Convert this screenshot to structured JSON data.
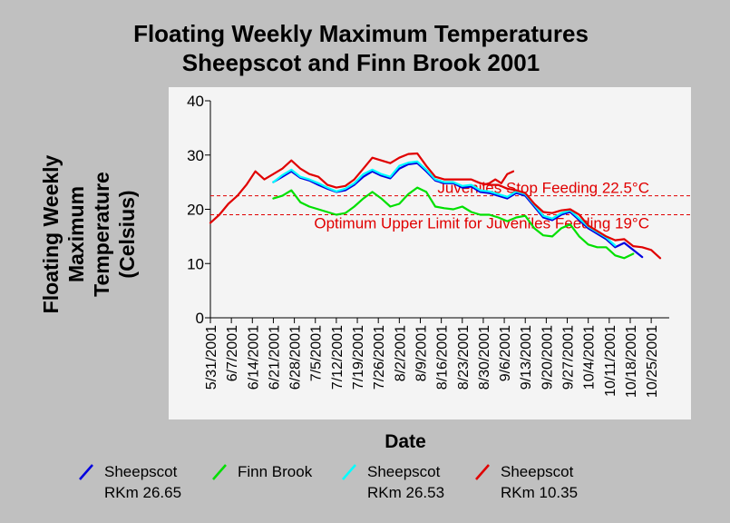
{
  "chart_data": {
    "type": "line",
    "title": [
      "Floating Weekly Maximum Temperatures",
      "Sheepscot and Finn Brook 2001"
    ],
    "xlabel": "Date",
    "ylabel": [
      "Floating Weekly",
      "Maximum",
      "Temperature",
      "(Celsius)"
    ],
    "ylim": [
      0,
      40
    ],
    "yticks": [
      0,
      10,
      20,
      30,
      40
    ],
    "xlim": [
      "2001-05-31",
      "2001-10-31"
    ],
    "xticks": [
      "5/31/2001",
      "6/7/2001",
      "6/14/2001",
      "6/21/2001",
      "6/28/2001",
      "7/5/2001",
      "7/12/2001",
      "7/19/2001",
      "7/26/2001",
      "8/2/2001",
      "8/9/2001",
      "8/16/2001",
      "8/23/2001",
      "8/30/2001",
      "9/6/2001",
      "9/13/2001",
      "9/20/2001",
      "9/27/2001",
      "10/4/2001",
      "10/11/2001",
      "10/18/2001",
      "10/25/2001"
    ],
    "grid": false,
    "legend_position": "bottom",
    "series": [
      {
        "name": "Sheepscot RKm 26.65",
        "legend_line1": "Sheepscot",
        "legend_line2": "RKm 26.65",
        "color": "#0000e0",
        "x": [
          "2001-06-21",
          "2001-06-24",
          "2001-06-27",
          "2001-06-30",
          "2001-07-03",
          "2001-07-06",
          "2001-07-09",
          "2001-07-12",
          "2001-07-15",
          "2001-07-18",
          "2001-07-21",
          "2001-07-24",
          "2001-07-27",
          "2001-07-30",
          "2001-08-02",
          "2001-08-05",
          "2001-08-08",
          "2001-08-11",
          "2001-08-14",
          "2001-08-17",
          "2001-08-20",
          "2001-08-23",
          "2001-08-26",
          "2001-08-29",
          "2001-09-01",
          "2001-09-04",
          "2001-09-07",
          "2001-09-10",
          "2001-09-13",
          "2001-09-16",
          "2001-09-19",
          "2001-09-22",
          "2001-09-25",
          "2001-09-28",
          "2001-10-01",
          "2001-10-04",
          "2001-10-07",
          "2001-10-10",
          "2001-10-13",
          "2001-10-16",
          "2001-10-19",
          "2001-10-22"
        ],
        "y": [
          25.0,
          26.0,
          27.0,
          25.8,
          25.3,
          24.5,
          23.8,
          23.2,
          23.5,
          24.5,
          26.0,
          27.0,
          26.2,
          25.7,
          27.5,
          28.3,
          28.5,
          27.0,
          25.3,
          24.8,
          24.8,
          24.0,
          24.2,
          23.2,
          23.0,
          22.5,
          22.0,
          23.0,
          22.5,
          20.5,
          18.5,
          18.0,
          19.0,
          19.5,
          18.0,
          16.5,
          15.5,
          14.5,
          13.0,
          13.8,
          12.5,
          11.2
        ]
      },
      {
        "name": "Finn Brook",
        "legend_line1": "Finn Brook",
        "legend_line2": "",
        "color": "#00e000",
        "x": [
          "2001-06-21",
          "2001-06-24",
          "2001-06-27",
          "2001-06-30",
          "2001-07-03",
          "2001-07-06",
          "2001-07-09",
          "2001-07-12",
          "2001-07-15",
          "2001-07-18",
          "2001-07-21",
          "2001-07-24",
          "2001-07-27",
          "2001-07-30",
          "2001-08-02",
          "2001-08-05",
          "2001-08-08",
          "2001-08-11",
          "2001-08-14",
          "2001-08-17",
          "2001-08-20",
          "2001-08-23",
          "2001-08-26",
          "2001-08-29",
          "2001-09-01",
          "2001-09-04",
          "2001-09-07",
          "2001-09-10",
          "2001-09-13",
          "2001-09-16",
          "2001-09-19",
          "2001-09-22",
          "2001-09-25",
          "2001-09-28",
          "2001-10-01",
          "2001-10-04",
          "2001-10-07",
          "2001-10-10",
          "2001-10-13",
          "2001-10-16",
          "2001-10-19"
        ],
        "y": [
          22.0,
          22.5,
          23.5,
          21.3,
          20.5,
          20.0,
          19.5,
          19.0,
          19.3,
          20.5,
          22.0,
          23.2,
          22.0,
          20.5,
          21.0,
          22.8,
          24.0,
          23.2,
          20.5,
          20.2,
          20.0,
          20.5,
          19.5,
          19.0,
          19.0,
          18.5,
          17.8,
          18.5,
          18.8,
          16.5,
          15.2,
          15.0,
          16.5,
          17.2,
          15.0,
          13.5,
          13.0,
          13.0,
          11.5,
          11.0,
          11.8
        ]
      },
      {
        "name": "Sheepscot RKm 26.53",
        "legend_line1": "Sheepscot",
        "legend_line2": "RKm 26.53",
        "color": "#00ffff",
        "x": [
          "2001-06-21",
          "2001-06-24",
          "2001-06-27",
          "2001-06-30",
          "2001-07-03",
          "2001-07-06",
          "2001-07-09",
          "2001-07-12",
          "2001-07-15",
          "2001-07-18",
          "2001-07-21",
          "2001-07-24",
          "2001-07-27",
          "2001-07-30",
          "2001-08-02",
          "2001-08-05",
          "2001-08-08",
          "2001-08-11",
          "2001-08-14",
          "2001-08-17",
          "2001-08-20",
          "2001-08-23",
          "2001-08-26",
          "2001-08-29",
          "2001-09-01",
          "2001-09-04",
          "2001-09-07",
          "2001-09-10",
          "2001-09-13",
          "2001-09-16",
          "2001-09-19",
          "2001-09-22",
          "2001-09-25",
          "2001-09-28",
          "2001-10-01",
          "2001-10-04",
          "2001-10-07",
          "2001-10-10",
          "2001-10-13"
        ],
        "y": [
          25.0,
          26.3,
          27.3,
          26.0,
          25.5,
          24.8,
          24.0,
          23.3,
          23.8,
          24.8,
          26.5,
          27.3,
          26.5,
          26.0,
          28.0,
          28.6,
          28.8,
          27.3,
          25.5,
          25.0,
          25.0,
          24.3,
          24.5,
          23.5,
          23.3,
          22.8,
          22.3,
          23.3,
          22.8,
          20.8,
          18.8,
          18.3,
          19.3,
          19.8,
          18.3,
          16.8,
          15.8,
          14.8,
          13.3
        ]
      },
      {
        "name": "Sheepscot RKm 10.35",
        "legend_line1": "Sheepscot",
        "legend_line2": "RKm 10.35",
        "color": "#e00000",
        "x": [
          "2001-05-31",
          "2001-06-03",
          "2001-06-06",
          "2001-06-09",
          "2001-06-12",
          "2001-06-15",
          "2001-06-18",
          "2001-06-21",
          "2001-06-24",
          "2001-06-27",
          "2001-06-30",
          "2001-07-03",
          "2001-07-06",
          "2001-07-09",
          "2001-07-12",
          "2001-07-15",
          "2001-07-18",
          "2001-07-21",
          "2001-07-24",
          "2001-07-27",
          "2001-07-30",
          "2001-08-02",
          "2001-08-05",
          "2001-08-08",
          "2001-08-11",
          "2001-08-14",
          "2001-08-17",
          "2001-08-20",
          "2001-08-23",
          "2001-08-26",
          "2001-08-29",
          "2001-09-01",
          "2001-09-04",
          "2001-09-07",
          "2001-09-10",
          "2001-09-13",
          "2001-09-16",
          "2001-09-19",
          "2001-09-22",
          "2001-09-25",
          "2001-09-28",
          "2001-10-01",
          "2001-10-04",
          "2001-10-07",
          "2001-10-10",
          "2001-10-13",
          "2001-10-16",
          "2001-10-19",
          "2001-10-22",
          "2001-10-25",
          "2001-10-28"
        ],
        "y": [
          17.5,
          19.0,
          21.0,
          22.5,
          24.5,
          27.0,
          25.5,
          26.5,
          27.5,
          29.0,
          27.5,
          26.5,
          26.0,
          24.5,
          24.0,
          24.3,
          25.5,
          27.5,
          29.5,
          29.0,
          28.5,
          29.5,
          30.2,
          30.3,
          28.0,
          26.0,
          25.5,
          25.5,
          25.5,
          25.5,
          24.8,
          24.5,
          24.5,
          23.8,
          23.5,
          23.0,
          21.0,
          19.5,
          19.3,
          19.8,
          20.0,
          19.0,
          17.0,
          16.0,
          15.0,
          14.3,
          14.5,
          13.2,
          13.0,
          12.5,
          11.0
        ]
      },
      {
        "name": "Sheepscot RKm 10.35 (short segment)",
        "legend_line1": "",
        "legend_line2": "",
        "color": "#e00000",
        "x": [
          "2001-08-30",
          "2001-09-01",
          "2001-09-03",
          "2001-09-05",
          "2001-09-07",
          "2001-09-09"
        ],
        "y": [
          24.5,
          24.8,
          25.5,
          24.8,
          26.5,
          27.0
        ]
      }
    ],
    "hlines": [
      {
        "y": 22.5,
        "label": "Juveniles Stop Feeding 22.5°C",
        "color": "#e00000",
        "style": "dashed"
      },
      {
        "y": 19,
        "label": "Optimum Upper Limit for Juveniles Feeding 19°C",
        "color": "#e00000",
        "style": "dashed"
      }
    ]
  }
}
